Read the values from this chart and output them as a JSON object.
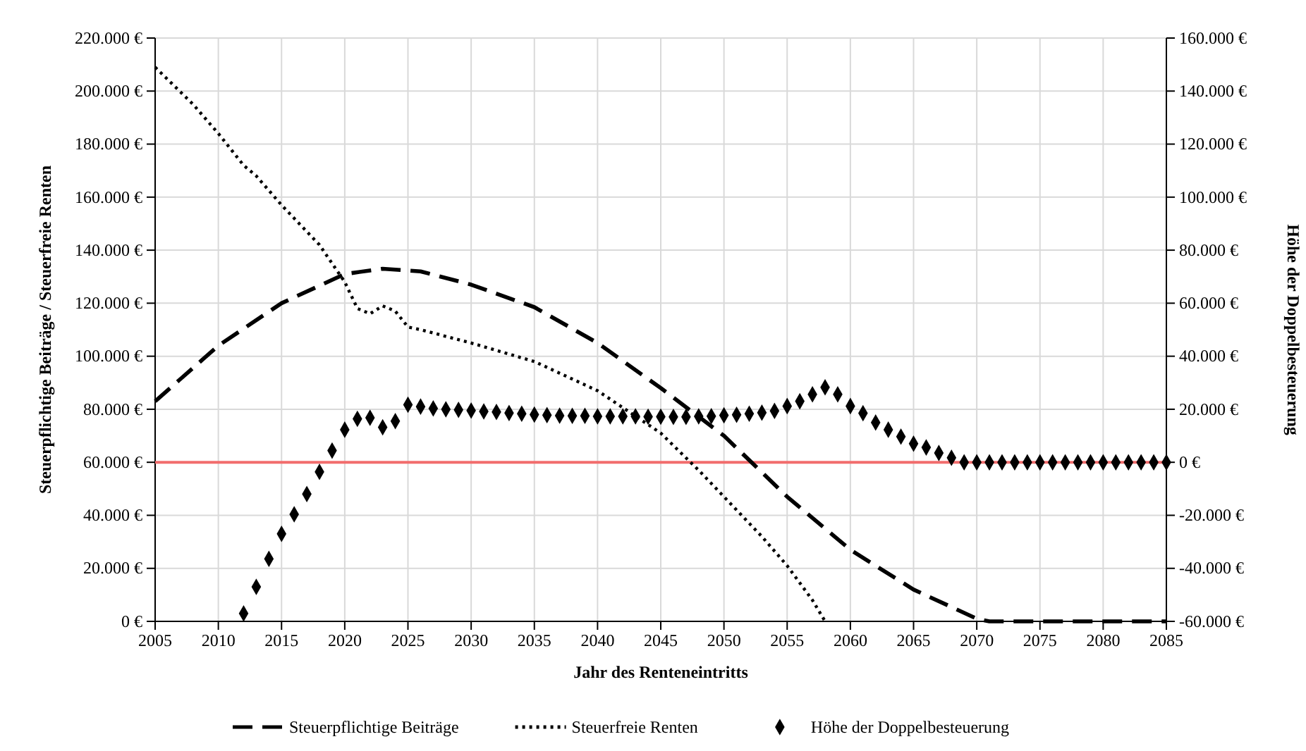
{
  "chart_data": {
    "type": "line",
    "xlabel": "Jahr des Renteneintritts",
    "ylabel": "Steuerpflichtige Beiträge / Steuerfreie Renten",
    "y2label": "Höhe der Doppelbesteuerung",
    "xlim": [
      2005,
      2085
    ],
    "xticks": [
      2005,
      2010,
      2015,
      2020,
      2025,
      2030,
      2035,
      2040,
      2045,
      2050,
      2055,
      2060,
      2065,
      2070,
      2075,
      2080,
      2085
    ],
    "ylim": [
      0,
      220000
    ],
    "yticks": [
      {
        "value": 0,
        "label": "0 €"
      },
      {
        "value": 20000,
        "label": "20.000 €"
      },
      {
        "value": 40000,
        "label": "40.000 €"
      },
      {
        "value": 60000,
        "label": "60.000 €"
      },
      {
        "value": 80000,
        "label": "80.000 €"
      },
      {
        "value": 100000,
        "label": "100.000 €"
      },
      {
        "value": 120000,
        "label": "120.000 €"
      },
      {
        "value": 140000,
        "label": "140.000 €"
      },
      {
        "value": 160000,
        "label": "160.000 €"
      },
      {
        "value": 180000,
        "label": "180.000 €"
      },
      {
        "value": 200000,
        "label": "200.000 €"
      },
      {
        "value": 220000,
        "label": "220.000 €"
      }
    ],
    "y2lim": [
      -60000,
      160000
    ],
    "y2ticks": [
      {
        "value": -60000,
        "label": "-60.000 €"
      },
      {
        "value": -40000,
        "label": "-40.000 €"
      },
      {
        "value": -20000,
        "label": "-20.000 €"
      },
      {
        "value": 0,
        "label": "0 €"
      },
      {
        "value": 20000,
        "label": "20.000 €"
      },
      {
        "value": 40000,
        "label": "40.000 €"
      },
      {
        "value": 60000,
        "label": "60.000 €"
      },
      {
        "value": 80000,
        "label": "80.000 €"
      },
      {
        "value": 100000,
        "label": "100.000 €"
      },
      {
        "value": 120000,
        "label": "120.000 €"
      },
      {
        "value": 140000,
        "label": "140.000 €"
      },
      {
        "value": 160000,
        "label": "160.000 €"
      }
    ],
    "grid": true,
    "legend": "bottom",
    "ref_lines": [
      {
        "axis": "y2",
        "value": 0,
        "color": "#f26d6d"
      }
    ],
    "series": [
      {
        "name": "Steuerpflichtige Beiträge",
        "line_style": "dashed",
        "marker": "none",
        "color": "#000000",
        "x": [
          2005,
          2010,
          2015,
          2020,
          2023,
          2026,
          2030,
          2035,
          2040,
          2045,
          2050,
          2055,
          2060,
          2065,
          2070,
          2071,
          2085
        ],
        "values": [
          83000,
          104000,
          120000,
          131000,
          133000,
          132000,
          127000,
          118500,
          105000,
          88000,
          70000,
          47000,
          27000,
          12000,
          1000,
          0,
          0
        ]
      },
      {
        "name": "Steuerfreie Renten",
        "line_style": "dotted",
        "marker": "none",
        "color": "#000000",
        "x": [
          2005,
          2008,
          2010,
          2012,
          2013,
          2015,
          2018,
          2020,
          2021,
          2022,
          2023,
          2024,
          2025,
          2026,
          2030,
          2035,
          2040,
          2045,
          2048,
          2050,
          2053,
          2055,
          2057,
          2058
        ],
        "values": [
          209000,
          195000,
          184000,
          172000,
          168000,
          157000,
          142000,
          128000,
          118000,
          116000,
          119000,
          117000,
          111000,
          110000,
          105000,
          98000,
          87000,
          71000,
          57000,
          47000,
          32000,
          21000,
          8000,
          0
        ]
      },
      {
        "name": "Höhe der Doppelbesteuerung",
        "type": "scatter",
        "axis": "y2",
        "marker": "diamond",
        "color": "#000000",
        "x": [
          2012,
          2013,
          2014,
          2015,
          2016,
          2017,
          2018,
          2019,
          2020,
          2021,
          2022,
          2023,
          2024,
          2025,
          2026,
          2027,
          2028,
          2029,
          2030,
          2031,
          2032,
          2033,
          2034,
          2035,
          2036,
          2037,
          2038,
          2039,
          2040,
          2041,
          2042,
          2043,
          2044,
          2045,
          2046,
          2047,
          2048,
          2049,
          2050,
          2051,
          2052,
          2053,
          2054,
          2055,
          2056,
          2057,
          2058,
          2059,
          2060,
          2061,
          2062,
          2063,
          2064,
          2065,
          2066,
          2067,
          2068,
          2069,
          2070,
          2071,
          2072,
          2073,
          2074,
          2075,
          2076,
          2077,
          2078,
          2079,
          2080,
          2081,
          2082,
          2083,
          2084,
          2085
        ],
        "values": [
          -57000,
          -47000,
          -36400,
          -27000,
          -19600,
          -12000,
          -3600,
          4400,
          12300,
          16400,
          16800,
          13200,
          15500,
          21700,
          21000,
          20300,
          20000,
          19800,
          19500,
          19200,
          19000,
          18600,
          18300,
          18000,
          17800,
          17600,
          17500,
          17500,
          17300,
          17300,
          17300,
          17300,
          17200,
          17200,
          17100,
          17100,
          17300,
          17400,
          17700,
          17900,
          18300,
          18700,
          19400,
          21200,
          23000,
          25600,
          28300,
          25600,
          21200,
          18500,
          15000,
          12300,
          9700,
          7000,
          5600,
          3500,
          1700,
          0,
          0,
          0,
          0,
          0,
          0,
          0,
          0,
          0,
          0,
          0,
          0,
          0,
          0,
          0,
          0,
          0
        ]
      }
    ]
  }
}
